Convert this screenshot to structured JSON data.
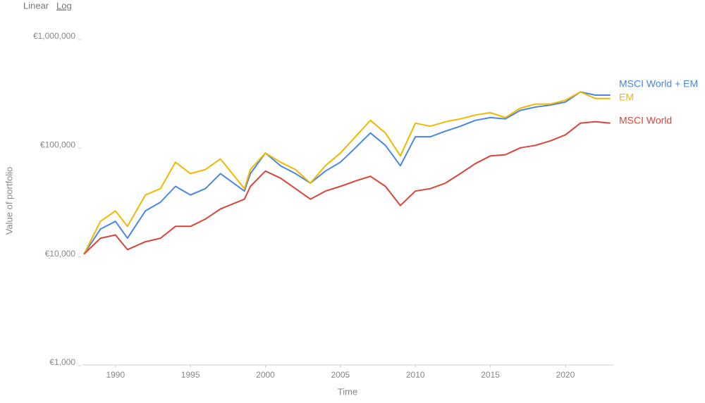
{
  "chart_data": {
    "type": "line",
    "scale_buttons": [
      "Linear",
      "Log"
    ],
    "log_scale": true,
    "x_label": "Time",
    "y_label": "Value of portfolio",
    "x": [
      1987.9,
      1989,
      1990,
      1990.8,
      1992,
      1993,
      1994,
      1995,
      1996,
      1997,
      1998.6,
      1999,
      2000,
      2001,
      2002,
      2003,
      2004,
      2005,
      2006,
      2007,
      2008,
      2009,
      2010,
      2011,
      2012,
      2013,
      2014,
      2015,
      2016,
      2017,
      2018,
      2019,
      2020,
      2021,
      2022,
      2023
    ],
    "series": [
      {
        "name": "MSCI World + EM",
        "color": "#4a86e8",
        "values": [
          10000,
          17000,
          20000,
          14000,
          25000,
          30000,
          42000,
          35000,
          40000,
          55000,
          38000,
          55000,
          85000,
          65000,
          55000,
          45000,
          58000,
          70000,
          95000,
          130000,
          100000,
          65000,
          120000,
          120000,
          135000,
          150000,
          170000,
          180000,
          175000,
          210000,
          225000,
          235000,
          250000,
          310000,
          290000,
          290000
        ]
      },
      {
        "name": "EM",
        "color": "#f1b800",
        "values": [
          10000,
          20000,
          25000,
          18000,
          35000,
          40000,
          70000,
          55000,
          60000,
          75000,
          40000,
          60000,
          85000,
          70000,
          60000,
          45000,
          65000,
          85000,
          120000,
          170000,
          130000,
          80000,
          160000,
          150000,
          165000,
          175000,
          190000,
          200000,
          180000,
          220000,
          240000,
          240000,
          260000,
          310000,
          270000,
          270000
        ]
      },
      {
        "name": "MSCI World",
        "color": "#d9443a",
        "values": [
          10000,
          14000,
          15000,
          11000,
          13000,
          14000,
          18000,
          18000,
          21000,
          26000,
          32000,
          42000,
          58000,
          50000,
          40000,
          32000,
          38000,
          42000,
          47000,
          52000,
          42000,
          28000,
          38000,
          40000,
          45000,
          55000,
          68000,
          80000,
          82000,
          95000,
          100000,
          110000,
          125000,
          160000,
          165000,
          160000
        ]
      }
    ],
    "xlim": [
      1987.8,
      2023.2
    ],
    "xticks": [
      1990,
      1995,
      2000,
      2005,
      2010,
      2015,
      2020
    ],
    "ylim": [
      1000,
      1000000
    ],
    "yticks": [
      {
        "value": 1000,
        "label": "€1,000"
      },
      {
        "value": 10000,
        "label": "€10,000"
      },
      {
        "value": 100000,
        "label": "€100,000"
      },
      {
        "value": 1000000,
        "label": "€1,000,000"
      }
    ]
  }
}
